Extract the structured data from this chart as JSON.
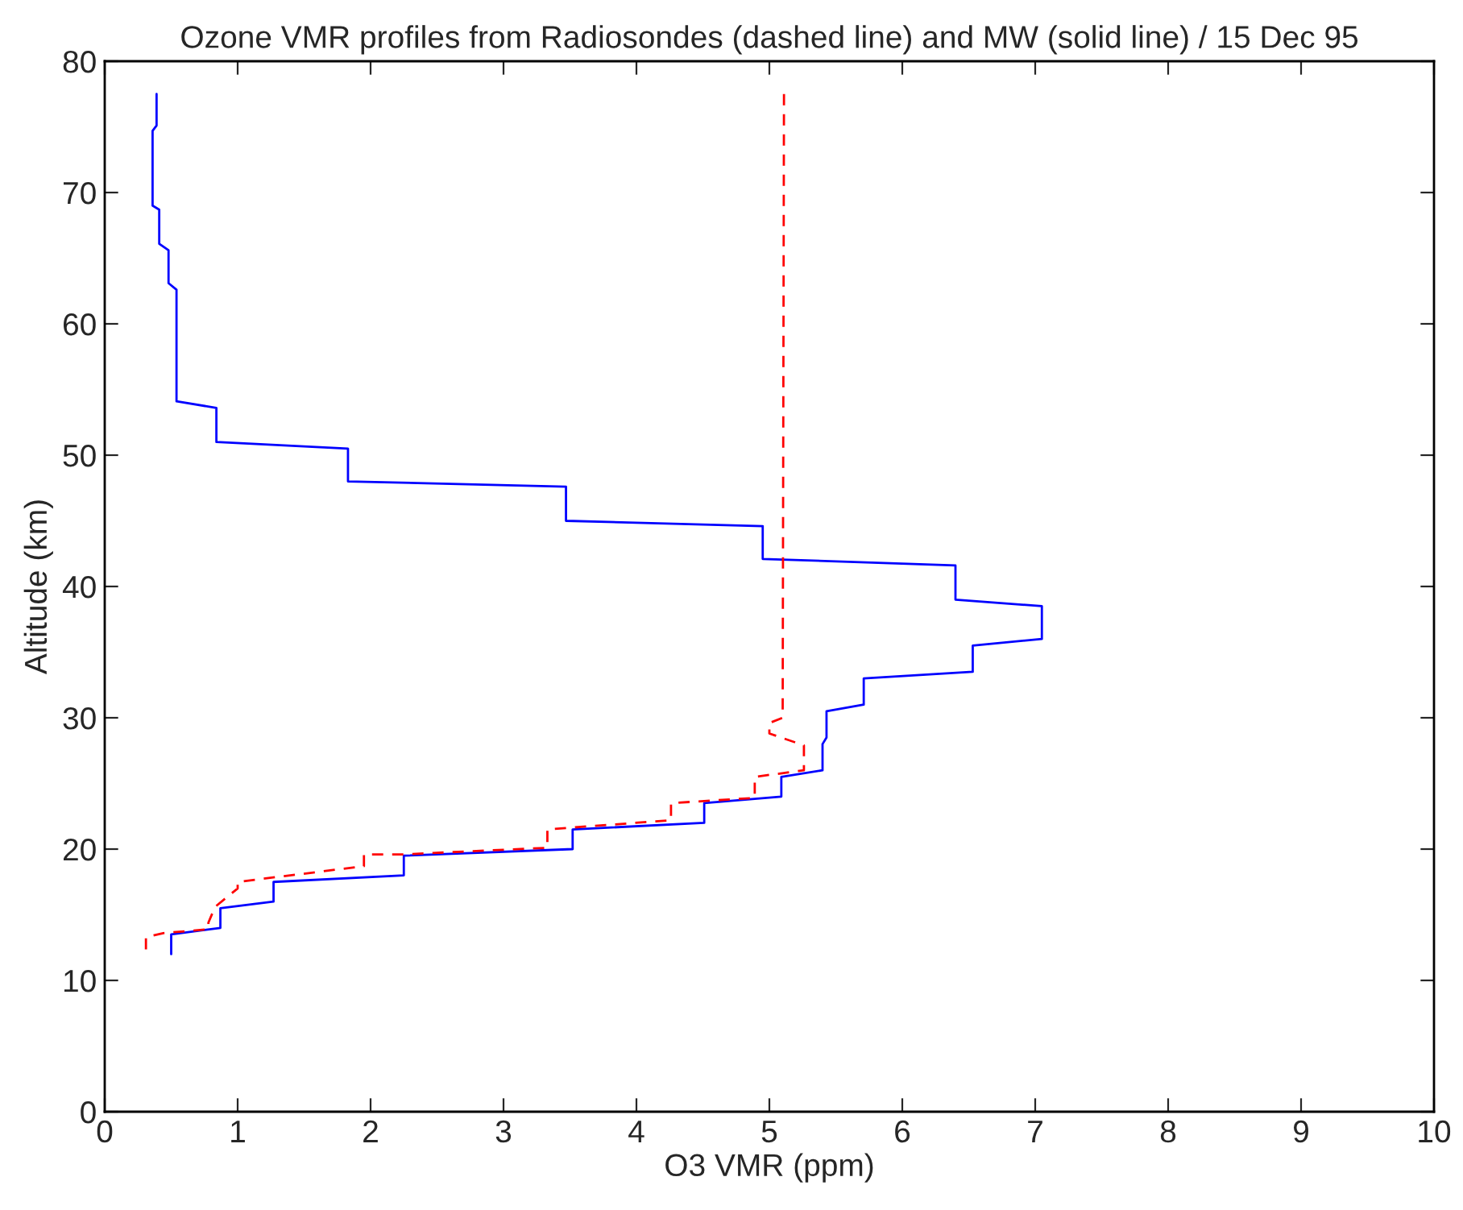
{
  "chart_data": {
    "type": "line",
    "title": "Ozone VMR profiles from Radiosondes (dashed line) and MW (solid line) / 15 Dec 95",
    "xlabel": "O3 VMR (ppm)",
    "ylabel": "Altitude (km)",
    "series": [
      {
        "color": "#0000ff",
        "line_style": "solid",
        "x": [
          0.39,
          0.39,
          0.36,
          0.36,
          0.41,
          0.41,
          0.48,
          0.48,
          0.54,
          0.54,
          0.84,
          0.84,
          1.83,
          1.83,
          3.47,
          3.47,
          4.95,
          4.95,
          6.4,
          6.4,
          7.05,
          7.05,
          6.53,
          6.53,
          5.71,
          5.71,
          5.43,
          5.43,
          5.4,
          5.4,
          5.09,
          5.09,
          4.51,
          4.51,
          3.52,
          3.52,
          2.25,
          2.25,
          1.27,
          1.27,
          0.87,
          0.87,
          0.5,
          0.5
        ],
        "values": [
          77.5,
          75.1,
          74.7,
          69.0,
          68.7,
          66.1,
          65.6,
          63.1,
          62.6,
          54.1,
          53.6,
          51.0,
          50.5,
          48.0,
          47.6,
          45.0,
          44.6,
          42.1,
          41.6,
          39.0,
          38.5,
          36.0,
          35.5,
          33.5,
          33.0,
          31.0,
          30.5,
          28.5,
          28.0,
          26.0,
          25.5,
          24.0,
          23.5,
          22.0,
          21.5,
          20.0,
          19.5,
          18.0,
          17.5,
          16.0,
          15.5,
          14.0,
          13.5,
          12.0
        ]
      },
      {
        "color": "#ff0000",
        "line_style": "dashed",
        "x": [
          5.11,
          5.1,
          5.0,
          5.0,
          5.26,
          5.26,
          4.89,
          4.89,
          4.26,
          4.26,
          3.33,
          3.33,
          2.25,
          1.95,
          1.95,
          1.0,
          1.0,
          0.83,
          0.78,
          0.78,
          0.44,
          0.31,
          0.31
        ],
        "values": [
          77.5,
          30.0,
          29.6,
          28.8,
          27.9,
          26.0,
          25.5,
          23.9,
          23.5,
          22.2,
          21.5,
          20.1,
          19.6,
          19.6,
          18.7,
          17.5,
          17.0,
          15.6,
          14.4,
          13.9,
          13.6,
          13.3,
          12.0
        ]
      }
    ],
    "xlim": [
      0,
      10
    ],
    "xticks": [
      0,
      1,
      2,
      3,
      4,
      5,
      6,
      7,
      8,
      9,
      10
    ],
    "ylim": [
      0,
      80
    ],
    "yticks": [
      0,
      10,
      20,
      30,
      40,
      50,
      60,
      70,
      80
    ]
  }
}
